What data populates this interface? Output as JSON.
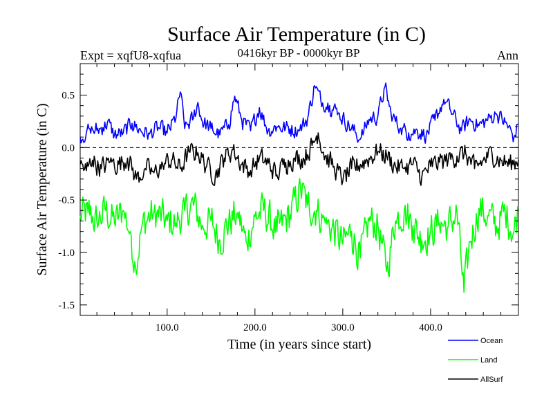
{
  "chart_data": {
    "type": "line",
    "title": "Surface Air Temperature (in C)",
    "subtitle_left": "Expt = xqfU8-xqfua",
    "subtitle_center": "0416kyr BP - 0000kyr BP",
    "subtitle_right": "Ann",
    "xlabel": "Time (in years since start)",
    "ylabel": "Surface Air Temperature (in C)",
    "xlim": [
      1,
      500
    ],
    "ylim": [
      -1.6,
      0.8
    ],
    "xticks": [
      100,
      200,
      300,
      400
    ],
    "xtick_labels": [
      "100.0",
      "200.0",
      "300.0",
      "400.0"
    ],
    "yticks": [
      -1.5,
      -1.0,
      -0.5,
      0.0,
      0.5
    ],
    "ytick_labels": [
      "-1.5",
      "-1.0",
      "-0.5",
      "0.0",
      "0.5"
    ],
    "zero_line": "dashed",
    "legend_position": "bottom-right, below plot",
    "series": [
      {
        "name": "Ocean",
        "color": "#0000ff",
        "keypoints": [
          [
            1,
            0.1
          ],
          [
            8,
            0.14
          ],
          [
            12,
            0.18
          ],
          [
            18,
            0.16
          ],
          [
            27,
            0.19
          ],
          [
            32,
            0.24
          ],
          [
            40,
            0.12
          ],
          [
            50,
            0.14
          ],
          [
            60,
            0.23
          ],
          [
            70,
            0.16
          ],
          [
            80,
            0.13
          ],
          [
            90,
            0.19
          ],
          [
            100,
            0.14
          ],
          [
            110,
            0.28
          ],
          [
            115,
            0.53
          ],
          [
            120,
            0.18
          ],
          [
            130,
            0.28
          ],
          [
            135,
            0.43
          ],
          [
            140,
            0.25
          ],
          [
            150,
            0.18
          ],
          [
            160,
            0.12
          ],
          [
            170,
            0.22
          ],
          [
            177,
            0.49
          ],
          [
            185,
            0.26
          ],
          [
            195,
            0.16
          ],
          [
            205,
            0.38
          ],
          [
            215,
            0.16
          ],
          [
            225,
            0.2
          ],
          [
            240,
            0.18
          ],
          [
            250,
            0.16
          ],
          [
            260,
            0.28
          ],
          [
            268,
            0.59
          ],
          [
            275,
            0.45
          ],
          [
            285,
            0.4
          ],
          [
            295,
            0.33
          ],
          [
            310,
            0.18
          ],
          [
            320,
            0.08
          ],
          [
            330,
            0.27
          ],
          [
            340,
            0.3
          ],
          [
            348,
            0.58
          ],
          [
            355,
            0.32
          ],
          [
            365,
            0.18
          ],
          [
            375,
            0.14
          ],
          [
            385,
            0.16
          ],
          [
            395,
            0.12
          ],
          [
            405,
            0.26
          ],
          [
            415,
            0.46
          ],
          [
            425,
            0.32
          ],
          [
            435,
            0.16
          ],
          [
            445,
            0.27
          ],
          [
            455,
            0.21
          ],
          [
            465,
            0.26
          ],
          [
            475,
            0.32
          ],
          [
            485,
            0.24
          ],
          [
            495,
            0.1
          ],
          [
            500,
            0.22
          ]
        ],
        "noise": 0.07
      },
      {
        "name": "Land",
        "color": "#00ff00",
        "keypoints": [
          [
            1,
            -0.65
          ],
          [
            10,
            -0.62
          ],
          [
            20,
            -0.7
          ],
          [
            30,
            -0.6
          ],
          [
            40,
            -0.72
          ],
          [
            50,
            -0.6
          ],
          [
            58,
            -0.8
          ],
          [
            64,
            -1.14
          ],
          [
            72,
            -0.72
          ],
          [
            85,
            -0.62
          ],
          [
            100,
            -0.7
          ],
          [
            110,
            -0.72
          ],
          [
            120,
            -0.6
          ],
          [
            130,
            -0.55
          ],
          [
            140,
            -0.74
          ],
          [
            150,
            -0.7
          ],
          [
            160,
            -0.88
          ],
          [
            170,
            -0.72
          ],
          [
            180,
            -0.62
          ],
          [
            190,
            -0.9
          ],
          [
            200,
            -0.66
          ],
          [
            210,
            -0.6
          ],
          [
            225,
            -0.8
          ],
          [
            240,
            -0.64
          ],
          [
            252,
            -0.4
          ],
          [
            260,
            -0.55
          ],
          [
            270,
            -0.6
          ],
          [
            280,
            -0.72
          ],
          [
            290,
            -0.78
          ],
          [
            300,
            -0.92
          ],
          [
            310,
            -0.8
          ],
          [
            320,
            -1.05
          ],
          [
            330,
            -0.7
          ],
          [
            340,
            -0.74
          ],
          [
            350,
            -1.18
          ],
          [
            360,
            -0.7
          ],
          [
            370,
            -0.6
          ],
          [
            380,
            -0.74
          ],
          [
            390,
            -0.88
          ],
          [
            400,
            -0.8
          ],
          [
            410,
            -0.72
          ],
          [
            420,
            -0.75
          ],
          [
            430,
            -0.62
          ],
          [
            438,
            -1.38
          ],
          [
            445,
            -0.9
          ],
          [
            455,
            -0.58
          ],
          [
            465,
            -0.65
          ],
          [
            475,
            -0.75
          ],
          [
            485,
            -0.62
          ],
          [
            495,
            -0.8
          ],
          [
            500,
            -0.58
          ]
        ],
        "noise": 0.16
      },
      {
        "name": "AllSurf",
        "color": "#000000",
        "keypoints": [
          [
            1,
            -0.16
          ],
          [
            8,
            -0.22
          ],
          [
            15,
            -0.12
          ],
          [
            25,
            -0.2
          ],
          [
            35,
            -0.14
          ],
          [
            45,
            -0.16
          ],
          [
            55,
            -0.1
          ],
          [
            65,
            -0.3
          ],
          [
            75,
            -0.2
          ],
          [
            85,
            -0.24
          ],
          [
            95,
            -0.16
          ],
          [
            105,
            -0.12
          ],
          [
            115,
            -0.2
          ],
          [
            125,
            -0.04
          ],
          [
            135,
            -0.05
          ],
          [
            145,
            -0.18
          ],
          [
            155,
            -0.26
          ],
          [
            165,
            -0.1
          ],
          [
            175,
            -0.02
          ],
          [
            185,
            -0.16
          ],
          [
            195,
            -0.22
          ],
          [
            205,
            -0.1
          ],
          [
            215,
            -0.15
          ],
          [
            225,
            -0.26
          ],
          [
            235,
            -0.14
          ],
          [
            245,
            -0.1
          ],
          [
            255,
            -0.1
          ],
          [
            265,
            0.02
          ],
          [
            272,
            0.14
          ],
          [
            280,
            -0.08
          ],
          [
            290,
            -0.18
          ],
          [
            300,
            -0.32
          ],
          [
            310,
            -0.2
          ],
          [
            320,
            -0.16
          ],
          [
            330,
            -0.1
          ],
          [
            340,
            -0.04
          ],
          [
            350,
            -0.08
          ],
          [
            360,
            -0.18
          ],
          [
            370,
            -0.2
          ],
          [
            380,
            -0.16
          ],
          [
            390,
            -0.28
          ],
          [
            400,
            -0.18
          ],
          [
            410,
            -0.14
          ],
          [
            420,
            -0.12
          ],
          [
            430,
            -0.08
          ],
          [
            440,
            -0.06
          ],
          [
            450,
            -0.2
          ],
          [
            460,
            -0.12
          ],
          [
            470,
            -0.06
          ],
          [
            480,
            -0.12
          ],
          [
            490,
            -0.16
          ],
          [
            500,
            -0.12
          ]
        ],
        "noise": 0.09
      }
    ]
  }
}
